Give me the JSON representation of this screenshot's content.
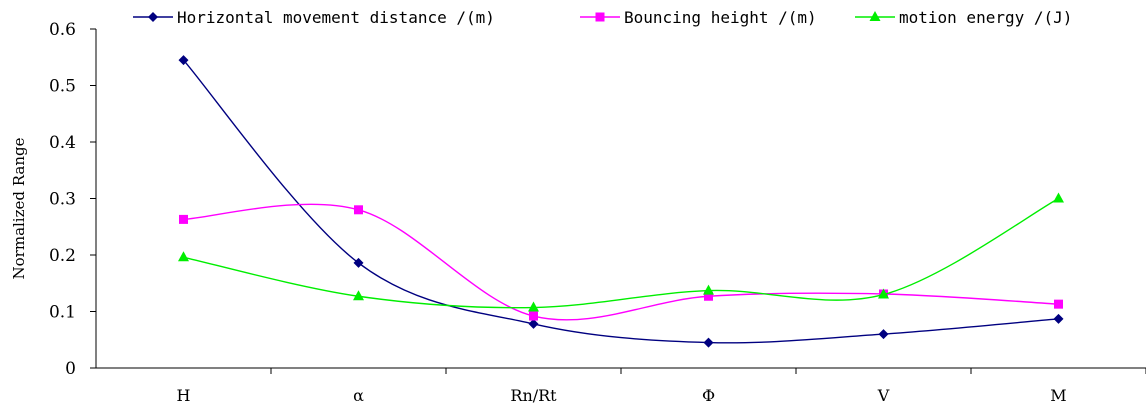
{
  "chart_data": {
    "type": "line",
    "title": "",
    "xlabel": "",
    "ylabel": "Normalized Range",
    "categories": [
      "H",
      "α",
      "Rn/Rt",
      "Φ",
      "V",
      "M"
    ],
    "ylim": [
      0,
      0.6
    ],
    "yticks": [
      "0",
      "0.1",
      "0.2",
      "0.3",
      "0.4",
      "0.5",
      "0.6"
    ],
    "grid": false,
    "legend_position": "top",
    "smooth": true,
    "series": [
      {
        "name": "Horizontal movement distance /(m)",
        "values": [
          0.545,
          0.186,
          0.078,
          0.045,
          0.06,
          0.087
        ],
        "color": "#000080",
        "marker": "diamond"
      },
      {
        "name": "Bouncing height /(m)",
        "values": [
          0.263,
          0.28,
          0.092,
          0.127,
          0.131,
          0.113
        ],
        "color": "#ff00ff",
        "marker": "square"
      },
      {
        "name": "motion energy /(J)",
        "values": [
          0.196,
          0.127,
          0.107,
          0.137,
          0.13,
          0.3
        ],
        "color": "#00ee00",
        "marker": "triangle"
      }
    ]
  }
}
